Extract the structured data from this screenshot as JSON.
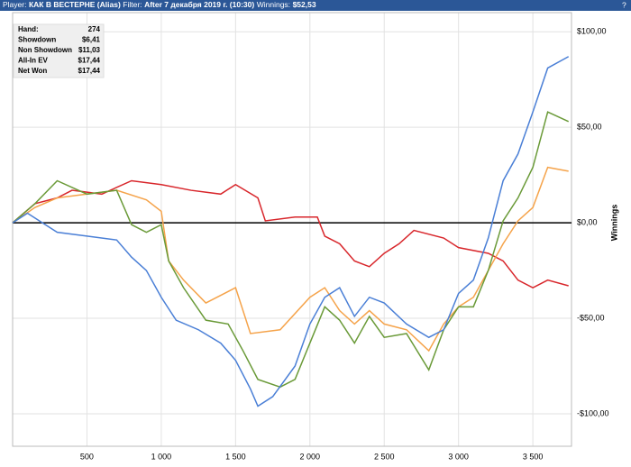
{
  "header": {
    "player_label": "Player:",
    "player": "КАК В ВЕСТЕРНЕ (Alias)",
    "filter_label": "Filter:",
    "filter": "After 7 декабря 2019 г. (10:30)",
    "winnings_label": "Winnings:",
    "winnings": "$52,53"
  },
  "stats": {
    "rows": [
      [
        "Hand:",
        "274"
      ],
      [
        "Showdown",
        "$6,41"
      ],
      [
        "Non Showdown",
        "$11,03"
      ],
      [
        "All-In EV",
        "$17,44"
      ],
      [
        "Net Won",
        "$17,44"
      ]
    ]
  },
  "chart_data": {
    "type": "line",
    "y_label": "Winnings",
    "xlim": [
      0,
      3760
    ],
    "ylim": [
      -117,
      110
    ],
    "grid": true,
    "xticks": [
      500,
      {
        "value": 1000,
        "label": "1 000"
      },
      {
        "value": 1500,
        "label": "1 500"
      },
      {
        "value": 2000,
        "label": "2 000"
      },
      {
        "value": 2500,
        "label": "2 500"
      },
      {
        "value": 3000,
        "label": "3 000"
      },
      {
        "value": 3500,
        "label": "3 500"
      }
    ],
    "yticks": [
      {
        "value": -100,
        "label": "-$100,00"
      },
      {
        "value": -50,
        "label": "-$50,00"
      },
      {
        "value": 0,
        "label": "$0,00"
      },
      {
        "value": 50,
        "label": "$50,00"
      },
      {
        "value": 100,
        "label": "$100,00"
      }
    ],
    "series": [
      {
        "color": "#d8262b",
        "x": [
          0,
          150,
          300,
          400,
          600,
          800,
          1000,
          1200,
          1400,
          1500,
          1650,
          1700,
          1900,
          2050,
          2100,
          2200,
          2300,
          2400,
          2500,
          2600,
          2700,
          2900,
          3000,
          3200,
          3300,
          3400,
          3500,
          3600,
          3740
        ],
        "values": [
          0,
          10,
          13,
          17,
          15,
          22,
          20,
          17,
          15,
          20,
          13,
          1,
          3,
          3,
          -7,
          -11,
          -20,
          -23,
          -16,
          -11,
          -4,
          -8,
          -13,
          -16,
          -20,
          -30,
          -34,
          -30,
          -33
        ]
      },
      {
        "color": "#f5a34a",
        "x": [
          0,
          150,
          300,
          500,
          700,
          900,
          1000,
          1050,
          1150,
          1300,
          1500,
          1600,
          1800,
          2000,
          2100,
          2200,
          2300,
          2400,
          2500,
          2650,
          2800,
          2900,
          3000,
          3100,
          3200,
          3300,
          3400,
          3500,
          3600,
          3740
        ],
        "values": [
          0,
          8,
          13,
          15,
          17,
          12,
          6,
          -20,
          -30,
          -42,
          -34,
          -58,
          -56,
          -39,
          -34,
          -46,
          -53,
          -46,
          -53,
          -56,
          -67,
          -53,
          -44,
          -39,
          -25,
          -11,
          1,
          8,
          29,
          27
        ]
      },
      {
        "color": "#6a9a38",
        "x": [
          0,
          150,
          300,
          500,
          700,
          800,
          900,
          1000,
          1050,
          1150,
          1300,
          1450,
          1550,
          1650,
          1800,
          1900,
          2000,
          2100,
          2200,
          2300,
          2400,
          2500,
          2650,
          2800,
          2900,
          3000,
          3100,
          3200,
          3300,
          3400,
          3500,
          3600,
          3740
        ],
        "values": [
          0,
          10,
          22,
          15,
          17,
          -1,
          -5,
          -1,
          -20,
          -34,
          -51,
          -53,
          -67,
          -82,
          -86,
          -82,
          -63,
          -44,
          -51,
          -63,
          -49,
          -60,
          -58,
          -77,
          -56,
          -44,
          -44,
          -25,
          1,
          13,
          29,
          58,
          53
        ]
      },
      {
        "color": "#4a7fd6",
        "x": [
          0,
          100,
          300,
          500,
          700,
          800,
          900,
          1000,
          1100,
          1250,
          1400,
          1500,
          1600,
          1650,
          1750,
          1900,
          2000,
          2100,
          2200,
          2300,
          2400,
          2500,
          2650,
          2800,
          2900,
          3000,
          3100,
          3200,
          3300,
          3400,
          3500,
          3600,
          3740
        ],
        "values": [
          0,
          5,
          -5,
          -7,
          -9,
          -18,
          -25,
          -39,
          -51,
          -56,
          -63,
          -72,
          -87,
          -96,
          -91,
          -75,
          -53,
          -39,
          -34,
          -49,
          -39,
          -42,
          -53,
          -60,
          -56,
          -37,
          -30,
          -8,
          22,
          36,
          58,
          81,
          87
        ]
      }
    ]
  }
}
